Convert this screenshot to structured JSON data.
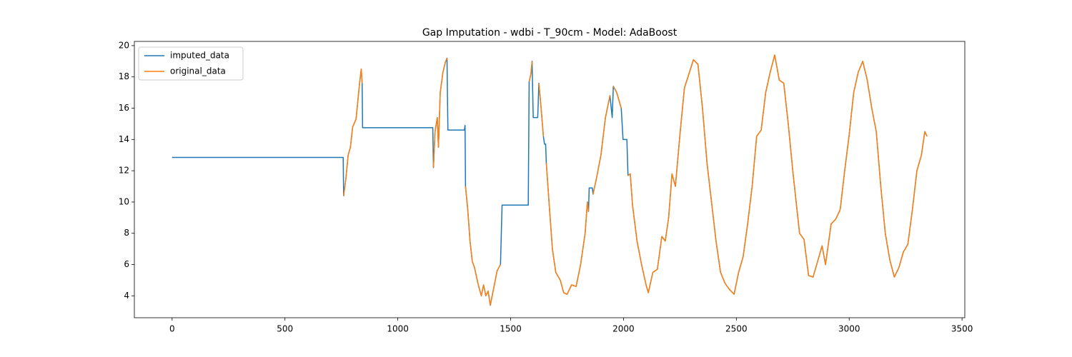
{
  "chart_data": {
    "type": "line",
    "title": "Gap Imputation - wdbi - T_90cm - Model: AdaBoost",
    "legend": "upper left",
    "xlim": [
      -167.25,
      3512.25
    ],
    "ylim": [
      2.6,
      20.27
    ],
    "xticks": [
      0,
      500,
      1000,
      1500,
      2000,
      2500,
      3000,
      3500
    ],
    "yticks": [
      4,
      6,
      8,
      10,
      12,
      14,
      16,
      18,
      20
    ],
    "x": [
      0,
      758,
      760,
      770,
      780,
      790,
      800,
      815,
      830,
      838,
      842,
      844,
      1155,
      1158,
      1165,
      1175,
      1180,
      1188,
      1200,
      1210,
      1218,
      1222,
      1295,
      1298,
      1300,
      1310,
      1320,
      1330,
      1340,
      1355,
      1370,
      1380,
      1390,
      1400,
      1410,
      1425,
      1440,
      1455,
      1462,
      1578,
      1582,
      1590,
      1595,
      1600,
      1620,
      1625,
      1635,
      1645,
      1650,
      1655,
      1658,
      1670,
      1685,
      1700,
      1720,
      1735,
      1750,
      1770,
      1790,
      1810,
      1830,
      1840,
      1845,
      1848,
      1862,
      1865,
      1880,
      1900,
      1920,
      1940,
      1950,
      1955,
      1970,
      1990,
      1998,
      2015,
      2020,
      2030,
      2040,
      2060,
      2080,
      2100,
      2110,
      2130,
      2150,
      2170,
      2185,
      2200,
      2215,
      2230,
      2250,
      2270,
      2290,
      2310,
      2330,
      2350,
      2370,
      2390,
      2410,
      2430,
      2450,
      2470,
      2490,
      2510,
      2530,
      2550,
      2570,
      2590,
      2610,
      2630,
      2650,
      2670,
      2690,
      2710,
      2730,
      2750,
      2780,
      2800,
      2820,
      2840,
      2860,
      2880,
      2895,
      2920,
      2940,
      2960,
      2980,
      3000,
      3020,
      3040,
      3060,
      3080,
      3100,
      3120,
      3140,
      3160,
      3180,
      3200,
      3220,
      3240,
      3260,
      3280,
      3300,
      3320,
      3335,
      3345
    ],
    "series": [
      {
        "name": "imputed_data",
        "color": "#1f77b4",
        "values": [
          12.85,
          12.85,
          10.4,
          11.5,
          13,
          13.5,
          14.8,
          15.3,
          17.5,
          18.5,
          17.6,
          14.75,
          14.75,
          12.2,
          14.5,
          15.4,
          13.5,
          17,
          18.3,
          18.9,
          19.2,
          14.6,
          14.6,
          14.9,
          11,
          9.5,
          7.5,
          6.2,
          5.8,
          4.8,
          4,
          4.7,
          4,
          4.3,
          3.4,
          4.5,
          5.6,
          6,
          9.8,
          9.8,
          17.7,
          18.2,
          19,
          15.4,
          15.4,
          17.6,
          16,
          14.2,
          13.7,
          13.7,
          12.5,
          10,
          7,
          5.5,
          5,
          4.2,
          4.1,
          4.7,
          4.6,
          6,
          8,
          10,
          9.4,
          10.9,
          10.9,
          10.5,
          11.5,
          13,
          15.4,
          16.8,
          15.4,
          17.4,
          17,
          16,
          14,
          14,
          11.7,
          11.8,
          9.8,
          7.5,
          6,
          4.7,
          4.2,
          5.5,
          5.7,
          7.8,
          7.5,
          9,
          11.8,
          11,
          14.3,
          17.3,
          18.2,
          19.1,
          18.8,
          16,
          12.5,
          10,
          7.5,
          5.5,
          4.8,
          4.4,
          4.1,
          5.5,
          6.5,
          8.6,
          11,
          14.2,
          14.6,
          17,
          18.3,
          19.4,
          17.8,
          17.6,
          15,
          12,
          8,
          7.6,
          5.3,
          5.2,
          6.2,
          7.2,
          6,
          8.6,
          8.9,
          9.5,
          12,
          14.3,
          17,
          18.3,
          19,
          17.8,
          16,
          14.5,
          11,
          8,
          6.3,
          5.2,
          5.8,
          6.8,
          7.3,
          9.5,
          12,
          13,
          14.5,
          14.2
        ]
      },
      {
        "name": "original_data",
        "color": "#ff7f0e",
        "values": [
          null,
          null,
          10.4,
          11.5,
          13,
          13.5,
          14.8,
          15.3,
          17.5,
          18.5,
          17.6,
          null,
          null,
          12.2,
          14.5,
          15.4,
          13.5,
          17,
          18.3,
          18.9,
          19.2,
          null,
          null,
          null,
          11,
          9.5,
          7.5,
          6.2,
          5.8,
          4.8,
          4,
          4.7,
          4,
          4.3,
          3.4,
          4.5,
          5.6,
          6,
          null,
          null,
          17.7,
          18.2,
          19,
          null,
          null,
          17.6,
          16,
          14.2,
          null,
          null,
          12.5,
          10,
          7,
          5.5,
          5,
          4.2,
          4.1,
          4.7,
          4.6,
          6,
          8,
          10,
          9.4,
          null,
          null,
          10.5,
          11.5,
          13,
          15.4,
          16.8,
          null,
          17.4,
          17,
          16,
          null,
          null,
          11.7,
          11.8,
          9.8,
          7.5,
          6,
          4.7,
          4.2,
          5.5,
          5.7,
          7.8,
          7.5,
          9,
          11.8,
          11,
          14.3,
          17.3,
          18.2,
          19.1,
          18.8,
          16,
          12.5,
          10,
          7.5,
          5.5,
          4.8,
          4.4,
          4.1,
          5.5,
          6.5,
          8.6,
          11,
          14.2,
          14.6,
          17,
          18.3,
          19.4,
          17.8,
          17.6,
          15,
          12,
          8,
          7.6,
          5.3,
          5.2,
          6.2,
          7.2,
          6,
          8.6,
          8.9,
          9.5,
          12,
          14.3,
          17,
          18.3,
          19,
          17.8,
          16,
          14.5,
          11,
          8,
          6.3,
          5.2,
          5.8,
          6.8,
          7.3,
          9.5,
          12,
          13,
          14.5,
          14.2
        ]
      }
    ]
  }
}
